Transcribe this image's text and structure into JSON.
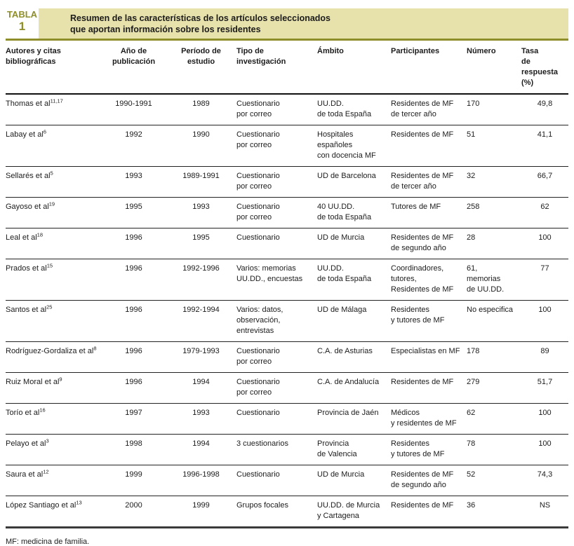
{
  "page": {
    "table_label": "TABLA",
    "table_number": "1",
    "title": "Resumen de las características de los artículos seleccionados\nque aportan información sobre los residentes",
    "footnote": "MF: medicina de familia."
  },
  "colors": {
    "olive": "#8e8e2b",
    "tan": "#e7e1ab",
    "text": "#1c1c1c"
  },
  "table": {
    "columns": [
      {
        "label": "Autores y citas bibliográficas"
      },
      {
        "label": "Año de publicación"
      },
      {
        "label": "Período de estudio"
      },
      {
        "label": "Tipo de investigación"
      },
      {
        "label": "Ámbito"
      },
      {
        "label": "Participantes"
      },
      {
        "label": "Número"
      },
      {
        "label": "Tasa\nde respuesta (%)"
      }
    ],
    "rows": [
      {
        "author": "Thomas et al",
        "ref": "11,17",
        "year": "1990-1991",
        "period": "1989",
        "method": "Cuestionario\npor correo",
        "scope": "UU.DD.\nde toda España",
        "participants": "Residentes de MF\nde tercer año",
        "number": "170",
        "rate": "49,8"
      },
      {
        "author": "Labay et al",
        "ref": "6",
        "year": "1992",
        "period": "1990",
        "method": "Cuestionario\npor correo",
        "scope": "Hospitales\nespañoles\ncon docencia MF",
        "participants": "Residentes de MF",
        "number": "51",
        "rate": "41,1"
      },
      {
        "author": "Sellarés et al",
        "ref": "5",
        "year": "1993",
        "period": "1989-1991",
        "method": "Cuestionario\npor correo",
        "scope": "UD de Barcelona",
        "participants": "Residentes de MF\nde tercer año",
        "number": "32",
        "rate": "66,7"
      },
      {
        "author": "Gayoso et al",
        "ref": "19",
        "year": "1995",
        "period": "1993",
        "method": "Cuestionario\npor correo",
        "scope": "40 UU.DD.\nde toda España",
        "participants": "Tutores de MF",
        "number": "258",
        "rate": "62"
      },
      {
        "author": "Leal et al",
        "ref": "18",
        "year": "1996",
        "period": "1995",
        "method": "Cuestionario",
        "scope": "UD de Murcia",
        "participants": "Residentes de MF\nde segundo año",
        "number": "28",
        "rate": "100"
      },
      {
        "author": "Prados et al",
        "ref": "15",
        "year": "1996",
        "period": "1992-1996",
        "method": "Varios: memorias\nUU.DD., encuestas",
        "scope": "UU.DD.\nde toda España",
        "participants": "Coordinadores,\ntutores,\nResidentes de MF",
        "number": "61,\nmemorias\nde UU.DD.",
        "rate": "77"
      },
      {
        "author": "Santos et al",
        "ref": "25",
        "year": "1996",
        "period": "1992-1994",
        "method": "Varios: datos,\nobservación,\nentrevistas",
        "scope": "UD de Málaga",
        "participants": "Residentes\ny tutores de MF",
        "number": "No especifica",
        "rate": "100"
      },
      {
        "author": "Rodríguez-Gordaliza et al",
        "ref": "8",
        "year": "1996",
        "period": "1979-1993",
        "method": "Cuestionario\npor correo",
        "scope": "C.A. de Asturias",
        "participants": "Especialistas en MF",
        "number": "178",
        "rate": "89"
      },
      {
        "author": "Ruiz Moral et al",
        "ref": "9",
        "year": "1996",
        "period": "1994",
        "method": "Cuestionario\npor correo",
        "scope": "C.A. de Andalucía",
        "participants": "Residentes de MF",
        "number": "279",
        "rate": "51,7"
      },
      {
        "author": "Torío et al",
        "ref": "16",
        "year": "1997",
        "period": "1993",
        "method": "Cuestionario",
        "scope": "Provincia de Jaén",
        "participants": "Médicos\ny residentes de MF",
        "number": "62",
        "rate": "100"
      },
      {
        "author": "Pelayo et al",
        "ref": "3",
        "year": "1998",
        "period": "1994",
        "method": "3 cuestionarios",
        "scope": "Provincia\nde Valencia",
        "participants": "Residentes\ny tutores de MF",
        "number": "78",
        "rate": "100"
      },
      {
        "author": "Saura et al",
        "ref": "12",
        "year": "1999",
        "period": "1996-1998",
        "method": "Cuestionario",
        "scope": "UD de Murcia",
        "participants": "Residentes de MF\nde segundo año",
        "number": "52",
        "rate": "74,3"
      },
      {
        "author": "López Santiago et al",
        "ref": "13",
        "year": "2000",
        "period": "1999",
        "method": "Grupos focales",
        "scope": "UU.DD. de Murcia\ny Cartagena",
        "participants": "Residentes de MF",
        "number": "36",
        "rate": "NS"
      }
    ]
  }
}
